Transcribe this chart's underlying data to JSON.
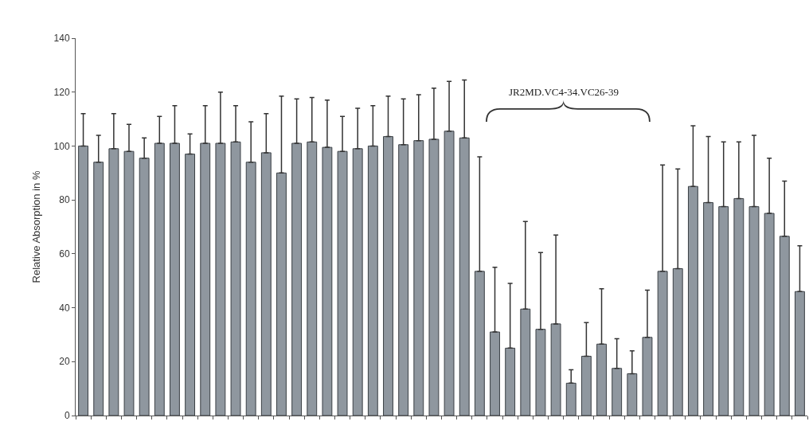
{
  "chart_data": {
    "type": "bar",
    "ylabel": "Relative Absorption in %",
    "categories": [
      null,
      null,
      null,
      null,
      null,
      null,
      null,
      null,
      null,
      null,
      null,
      null,
      null,
      null,
      null,
      null,
      null,
      null,
      null,
      null,
      null,
      null,
      null,
      null,
      null,
      null,
      null,
      null,
      null,
      null,
      null,
      null,
      null,
      null,
      null,
      null,
      null,
      null,
      null,
      null,
      null,
      null,
      null,
      null,
      null,
      null,
      null,
      null
    ],
    "values": [
      100,
      94,
      99,
      98,
      95.5,
      101,
      101,
      97,
      101,
      101,
      101.5,
      94,
      97.5,
      90,
      101,
      101.5,
      99.5,
      98,
      99,
      100,
      103.5,
      100.5,
      102,
      102.5,
      105.5,
      103,
      53.5,
      31,
      25,
      39.5,
      32,
      34,
      12,
      22,
      26.5,
      17.5,
      15.5,
      29,
      53.5,
      54.5,
      85,
      79,
      77.5,
      80.5,
      77.5,
      75,
      66.5,
      46
    ],
    "errors": [
      [
        100,
        112
      ],
      [
        94,
        104
      ],
      [
        99,
        112
      ],
      [
        98,
        108
      ],
      [
        95.5,
        103
      ],
      [
        101,
        111
      ],
      [
        101,
        115
      ],
      [
        97,
        104.5
      ],
      [
        101,
        115
      ],
      [
        101,
        120
      ],
      [
        101.5,
        115
      ],
      [
        94,
        109
      ],
      [
        97.5,
        112
      ],
      [
        90,
        118.5
      ],
      [
        101,
        117.5
      ],
      [
        101.5,
        118
      ],
      [
        99.5,
        117
      ],
      [
        98,
        111
      ],
      [
        99,
        114
      ],
      [
        100,
        115
      ],
      [
        103.5,
        118.5
      ],
      [
        100.5,
        117.5
      ],
      [
        102,
        119
      ],
      [
        102.5,
        121.5
      ],
      [
        105.5,
        124
      ],
      [
        103,
        124.5
      ],
      [
        53.5,
        96
      ],
      [
        31,
        55
      ],
      [
        25,
        49
      ],
      [
        39.5,
        72
      ],
      [
        32,
        60.5
      ],
      [
        34,
        67
      ],
      [
        12,
        17
      ],
      [
        22,
        34.5
      ],
      [
        26.5,
        47
      ],
      [
        17.5,
        28.5
      ],
      [
        15.5,
        24
      ],
      [
        29,
        46.5
      ],
      [
        53.5,
        93
      ],
      [
        54.5,
        91.5
      ],
      [
        85,
        107.5
      ],
      [
        79,
        103.5
      ],
      [
        77.5,
        101.5
      ],
      [
        80.5,
        101.5
      ],
      [
        77.5,
        104
      ],
      [
        75,
        95.5
      ],
      [
        66.5,
        87
      ],
      [
        46,
        63
      ]
    ],
    "color": "#8f979f",
    "ylim": [
      0,
      140
    ],
    "yticks": [
      0,
      20,
      40,
      60,
      80,
      100,
      120,
      140
    ],
    "grid": false,
    "annotations": [
      "JR2MD.VC4-34.VC26-39"
    ]
  }
}
